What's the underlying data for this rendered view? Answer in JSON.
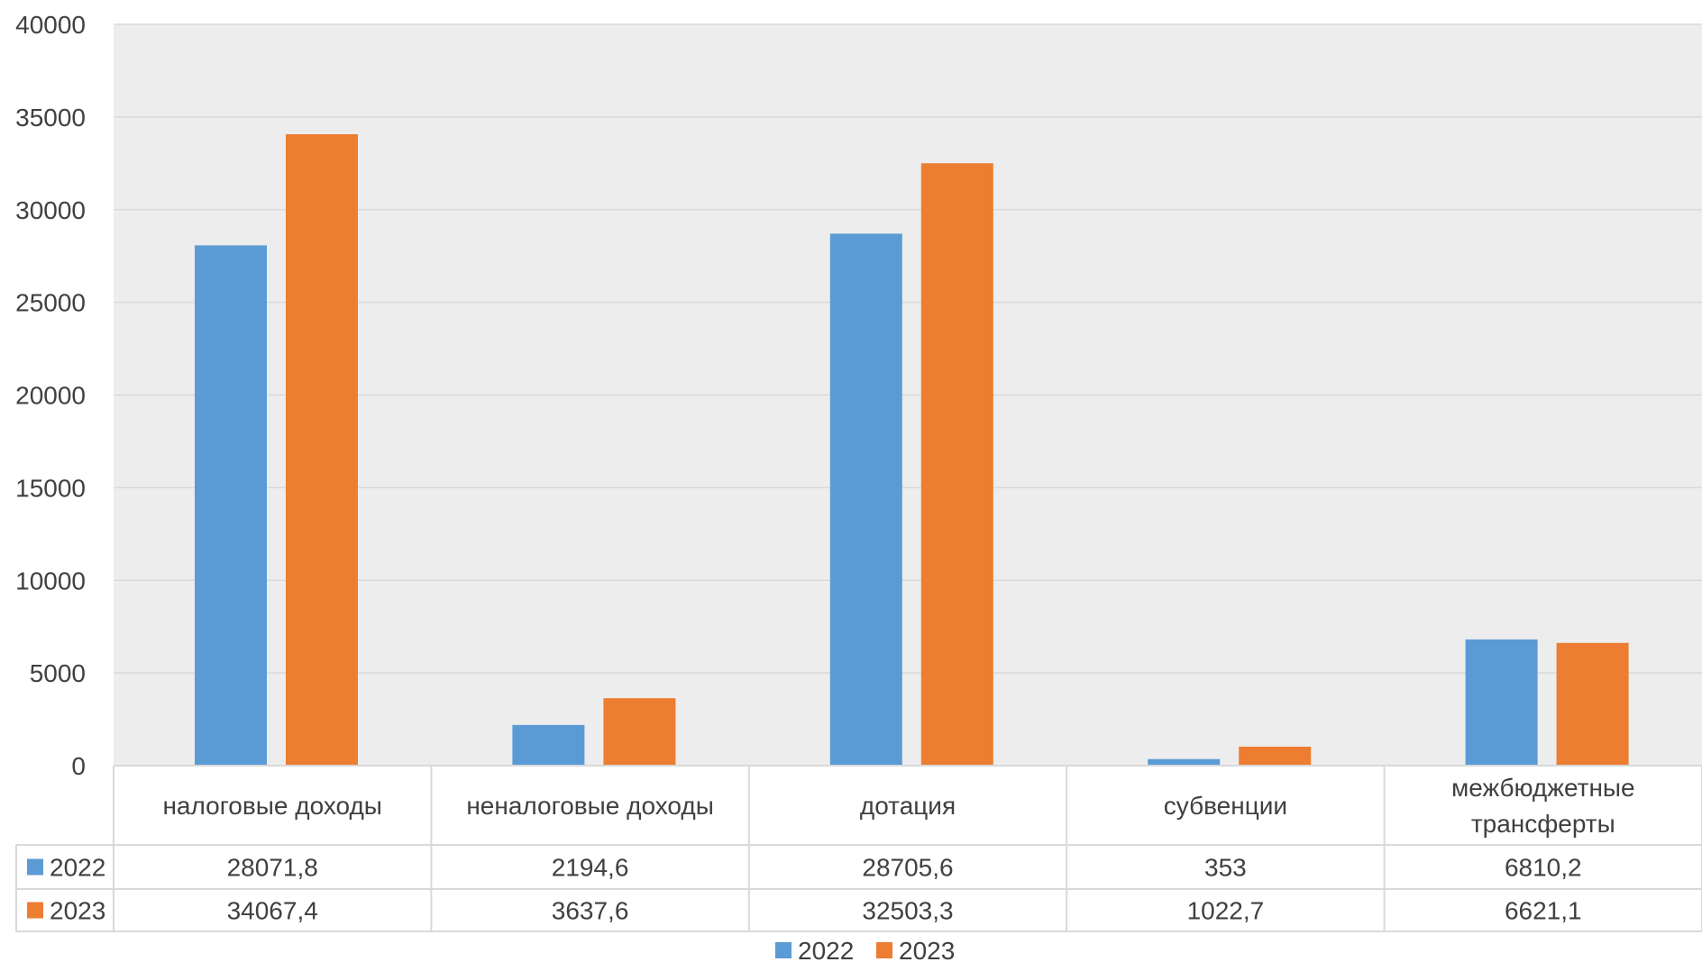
{
  "chart_data": {
    "type": "bar",
    "title": "",
    "xlabel": "",
    "ylabel": "",
    "ylim": [
      0,
      40000
    ],
    "yticks": [
      "0",
      "5000",
      "10000",
      "15000",
      "20000",
      "25000",
      "30000",
      "35000",
      "40000"
    ],
    "grid": true,
    "legend_position": "bottom",
    "categories": [
      [
        "налоговые доходы"
      ],
      [
        "неналоговые доходы"
      ],
      [
        "дотация"
      ],
      [
        "субвенции"
      ],
      [
        "межбюджетные",
        "трансферты"
      ]
    ],
    "series": [
      {
        "name": "2022",
        "color": "#5B9BD5",
        "values": [
          28071.8,
          2194.6,
          28705.6,
          353,
          6810.2
        ],
        "labels": [
          "28071,8",
          "2194,6",
          "28705,6",
          "353",
          "6810,2"
        ]
      },
      {
        "name": "2023",
        "color": "#ED7D31",
        "values": [
          34067.4,
          3637.6,
          32503.3,
          1022.7,
          6621.1
        ],
        "labels": [
          "34067,4",
          "3637,6",
          "32503,3",
          "1022,7",
          "6621,1"
        ]
      }
    ],
    "plot_background": "#EDEDED",
    "gridline_color": "#D9D9D9",
    "table_border_color": "#D9D9D9"
  }
}
